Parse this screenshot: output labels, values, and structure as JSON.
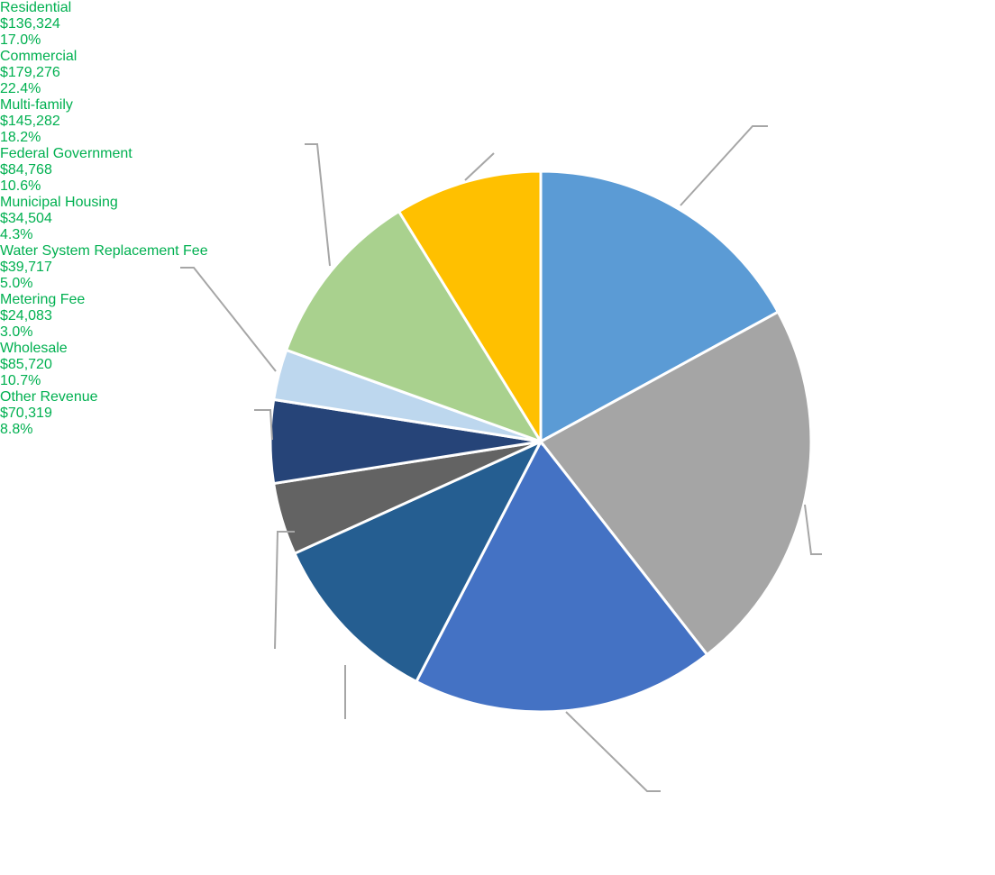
{
  "chart_data": {
    "type": "pie",
    "categories": [
      "Residential",
      "Commercial",
      "Multi-family",
      "Federal Government",
      "Municipal Housing",
      "Water System Replacement Fee",
      "Metering Fee",
      "Wholesale",
      "Other Revenue"
    ],
    "values": [
      136324,
      179276,
      145282,
      84768,
      34504,
      39717,
      24083,
      85720,
      70319
    ],
    "value_labels": [
      "$136,324",
      "$179,276",
      "$145,282",
      "$84,768",
      "$34,504",
      "$39,717",
      "$24,083",
      "$85,720",
      "$70,319"
    ],
    "percents": [
      17.0,
      22.4,
      18.2,
      10.6,
      4.3,
      5.0,
      3.0,
      10.7,
      8.8
    ],
    "percent_labels": [
      "17.0%",
      "22.4%",
      "18.2%",
      "10.6%",
      "4.3%",
      "5.0%",
      "3.0%",
      "10.7%",
      "8.8%"
    ],
    "colors": [
      "#5b9bd5",
      "#a5a5a5",
      "#4472c4",
      "#255e91",
      "#636363",
      "#264478",
      "#bdd7ee",
      "#a9d18e",
      "#ffc000"
    ],
    "label_color": "#00b050"
  }
}
